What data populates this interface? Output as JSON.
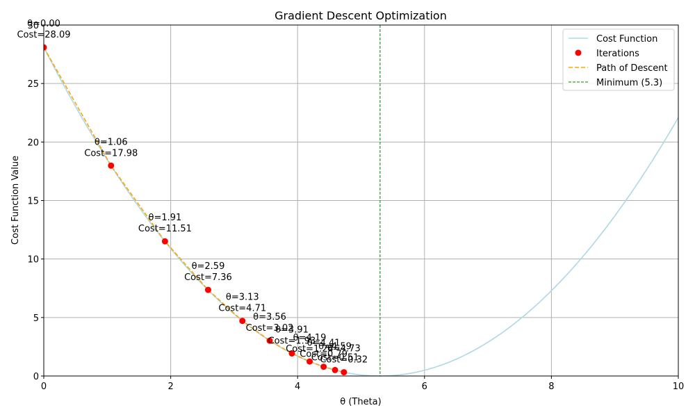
{
  "chart_data": {
    "type": "line",
    "title": "Gradient Descent Optimization",
    "xlabel": "θ (Theta)",
    "ylabel": "Cost Function Value",
    "xlim": [
      0,
      10
    ],
    "ylim": [
      0,
      30
    ],
    "xticks": [
      0,
      2,
      4,
      6,
      8,
      10
    ],
    "yticks": [
      0,
      5,
      10,
      15,
      20,
      25,
      30
    ],
    "grid": true,
    "legend_position": "upper right",
    "series": [
      {
        "name": "Cost Function",
        "kind": "line",
        "color": "#add8e6",
        "formula": "(θ - 5.3)^2",
        "x": [
          0,
          0.5,
          1,
          1.5,
          2,
          2.5,
          3,
          3.5,
          4,
          4.5,
          5,
          5.3,
          5.5,
          6,
          6.5,
          7,
          7.5,
          8,
          8.5,
          9,
          9.5,
          10
        ],
        "y": [
          28.09,
          23.04,
          18.49,
          14.44,
          10.89,
          7.84,
          5.29,
          3.24,
          1.69,
          0.64,
          0.09,
          0.0,
          0.04,
          0.49,
          1.44,
          2.89,
          4.84,
          7.29,
          10.24,
          13.69,
          17.64,
          22.09
        ]
      },
      {
        "name": "Iterations",
        "kind": "scatter",
        "color": "#ff0000",
        "x": [
          0.0,
          1.06,
          1.91,
          2.59,
          3.13,
          3.56,
          3.91,
          4.19,
          4.41,
          4.59,
          4.73
        ],
        "y": [
          28.09,
          17.98,
          11.51,
          7.36,
          4.71,
          3.02,
          1.93,
          1.24,
          0.79,
          0.51,
          0.32
        ]
      },
      {
        "name": "Path of Descent",
        "kind": "line",
        "style": "dashed",
        "color": "#ffa500",
        "x": [
          0.0,
          1.06,
          1.91,
          2.59,
          3.13,
          3.56,
          3.91,
          4.19,
          4.41,
          4.59,
          4.73
        ],
        "y": [
          28.09,
          17.98,
          11.51,
          7.36,
          4.71,
          3.02,
          1.93,
          1.24,
          0.79,
          0.51,
          0.32
        ]
      },
      {
        "name": "Minimum (5.3)",
        "kind": "vline",
        "style": "dashed",
        "color": "#008000",
        "x": 5.3
      }
    ],
    "annotations": [
      {
        "x": 0.0,
        "y": 28.09,
        "line1": "θ=0.00",
        "line2": "Cost=28.09"
      },
      {
        "x": 1.06,
        "y": 17.98,
        "line1": "θ=1.06",
        "line2": "Cost=17.98"
      },
      {
        "x": 1.91,
        "y": 11.51,
        "line1": "θ=1.91",
        "line2": "Cost=11.51"
      },
      {
        "x": 2.59,
        "y": 7.36,
        "line1": "θ=2.59",
        "line2": "Cost=7.36"
      },
      {
        "x": 3.13,
        "y": 4.71,
        "line1": "θ=3.13",
        "line2": "Cost=4.71"
      },
      {
        "x": 3.56,
        "y": 3.02,
        "line1": "θ=3.56",
        "line2": "Cost=3.02"
      },
      {
        "x": 3.91,
        "y": 1.93,
        "line1": "θ=3.91",
        "line2": "Cost=1.93"
      },
      {
        "x": 4.19,
        "y": 1.24,
        "line1": "θ=4.19",
        "line2": "Cost=1.24"
      },
      {
        "x": 4.41,
        "y": 0.79,
        "line1": "θ=4.41",
        "line2": "Cost=0.79"
      },
      {
        "x": 4.59,
        "y": 0.51,
        "line1": "θ=4.59",
        "line2": "Cost=0.51"
      },
      {
        "x": 4.73,
        "y": 0.32,
        "line1": "θ=4.73",
        "line2": "Cost=0.32"
      }
    ]
  }
}
